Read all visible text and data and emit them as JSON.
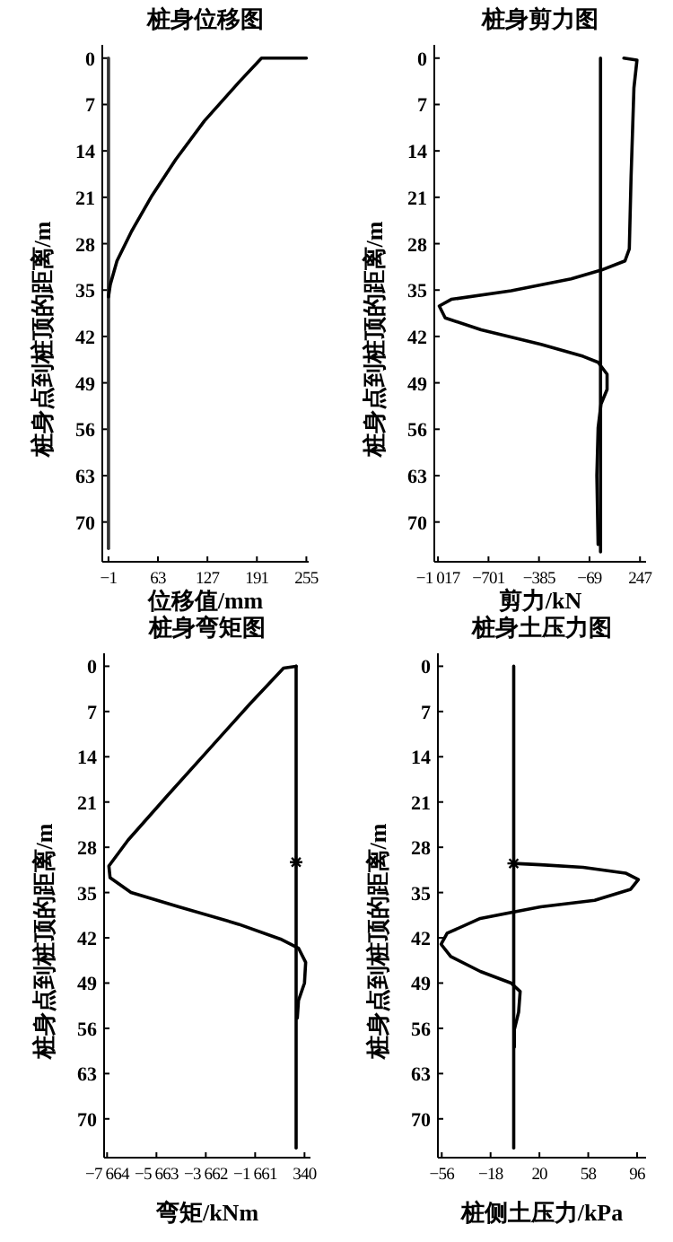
{
  "chart_data": [
    {
      "type": "line",
      "title": "桩身位移图",
      "xlabel": "位移值/mm",
      "ylabel": "桩身点到桩顶的距离/m",
      "xlim": [
        -9,
        258
      ],
      "xticks": [
        {
          "value": -1,
          "label": "−1"
        },
        63,
        127,
        191,
        255
      ],
      "ylim": [
        76,
        -2
      ],
      "yticks": [
        0,
        7,
        14,
        21,
        28,
        35,
        42,
        49,
        56,
        63,
        70
      ],
      "series": [
        {
          "color": "#333333",
          "x": [
            -1,
            -1,
            -1
          ],
          "values": [
            0,
            36,
            74
          ]
        },
        {
          "color": "#000000",
          "x": [
            255,
            197,
            168,
            123,
            86,
            55.5,
            29,
            10,
            1.3,
            -1
          ],
          "values": [
            0,
            0,
            3.6,
            9.5,
            15.3,
            20.7,
            26.1,
            30.6,
            34.2,
            36
          ]
        }
      ]
    },
    {
      "type": "line",
      "title": "桩身剪力图",
      "xlabel": "剪力/kN",
      "ylabel": "桩身点到桩顶的距离/m",
      "xlim": [
        -1040,
        285
      ],
      "xticks": [
        {
          "value": -1017,
          "label": "−1 017"
        },
        {
          "value": -701,
          "label": "−701"
        },
        {
          "value": -385,
          "label": "−385"
        },
        {
          "value": -69,
          "label": "−69"
        },
        247
      ],
      "ylim": [
        76,
        -2
      ],
      "yticks": [
        0,
        7,
        14,
        21,
        28,
        35,
        42,
        49,
        56,
        63,
        70
      ],
      "series": [
        {
          "color": "#000000",
          "x": [
            0,
            0
          ],
          "values": [
            0,
            74.5
          ]
        },
        {
          "color": "#000000",
          "x": [
            146,
            228,
            209,
            191,
            180,
            153,
            3,
            -184,
            -559,
            -934,
            -1009,
            -972,
            -747,
            -372,
            -109,
            -15,
            41,
            41,
            3,
            -15,
            -23,
            -15
          ],
          "values": [
            0,
            0.3,
            4.5,
            18,
            28.8,
            30.6,
            32,
            33.3,
            35.1,
            36.4,
            37.4,
            39.2,
            41,
            43.2,
            45,
            45.9,
            47.7,
            50,
            52.2,
            55.8,
            63,
            73.4
          ]
        }
      ]
    },
    {
      "type": "line",
      "title": "桩身弯矩图",
      "xlabel": "弯矩/kNm",
      "ylabel": "桩身点到桩顶的距离/m",
      "xlim": [
        -7785,
        582
      ],
      "xticks": [
        {
          "value": -7664,
          "label": "−7 664"
        },
        {
          "value": -5663,
          "label": "−5 663"
        },
        {
          "value": -3662,
          "label": "−3 662"
        },
        {
          "value": -1661,
          "label": "−1 661"
        },
        340
      ],
      "ylim": [
        76,
        -2
      ],
      "yticks": [
        0,
        7,
        14,
        21,
        28,
        35,
        42,
        49,
        56,
        63,
        70
      ],
      "series": [
        {
          "color": "#000000",
          "x": [
            0,
            0
          ],
          "values": [
            0,
            74.5
          ]
        },
        {
          "color": "#000000",
          "x": [
            0,
            -510,
            -1844,
            -3542,
            -5239,
            -6815,
            -7591,
            -7543,
            -6694,
            -4754,
            -2329,
            -632,
            96,
            387,
            339,
            96,
            48
          ],
          "values": [
            0,
            0.3,
            5.7,
            12.9,
            20.1,
            26.9,
            30.9,
            32.7,
            35,
            37.2,
            39.9,
            42.2,
            43.6,
            45.8,
            49,
            51.7,
            54.4
          ]
        },
        {
          "type": "scatter",
          "marker": "cross",
          "color": "#000000",
          "x": [
            0
          ],
          "values": [
            30.3
          ]
        }
      ]
    },
    {
      "type": "line",
      "title": "桩身土压力图",
      "xlabel": "桩侧土压力/kPa",
      "ylabel": "桩身点到桩顶的距离/m",
      "xlim": [
        -59,
        103
      ],
      "xticks": [
        {
          "value": -56,
          "label": "−56"
        },
        {
          "value": -18,
          "label": "−18"
        },
        20,
        58,
        96
      ],
      "ylim": [
        76,
        -2
      ],
      "yticks": [
        0,
        7,
        14,
        21,
        28,
        35,
        42,
        49,
        56,
        63,
        70
      ],
      "series": [
        {
          "color": "#000000",
          "x": [
            0,
            0
          ],
          "values": [
            0,
            74.5
          ]
        },
        {
          "color": "#000000",
          "x": [
            0,
            21,
            54,
            87,
            97,
            91,
            63,
            21,
            -26,
            -51.8,
            -56.5,
            -49,
            -26,
            -2,
            5,
            3.8,
            0.5,
            0.5
          ],
          "values": [
            30.5,
            30.7,
            31.1,
            32,
            33,
            34.5,
            36.2,
            37.2,
            39,
            41.3,
            43,
            44.9,
            47.2,
            49,
            50.3,
            53.5,
            56.2,
            58.9
          ]
        },
        {
          "type": "scatter",
          "marker": "cross",
          "color": "#000000",
          "x": [
            0
          ],
          "values": [
            30.5
          ]
        }
      ]
    }
  ]
}
